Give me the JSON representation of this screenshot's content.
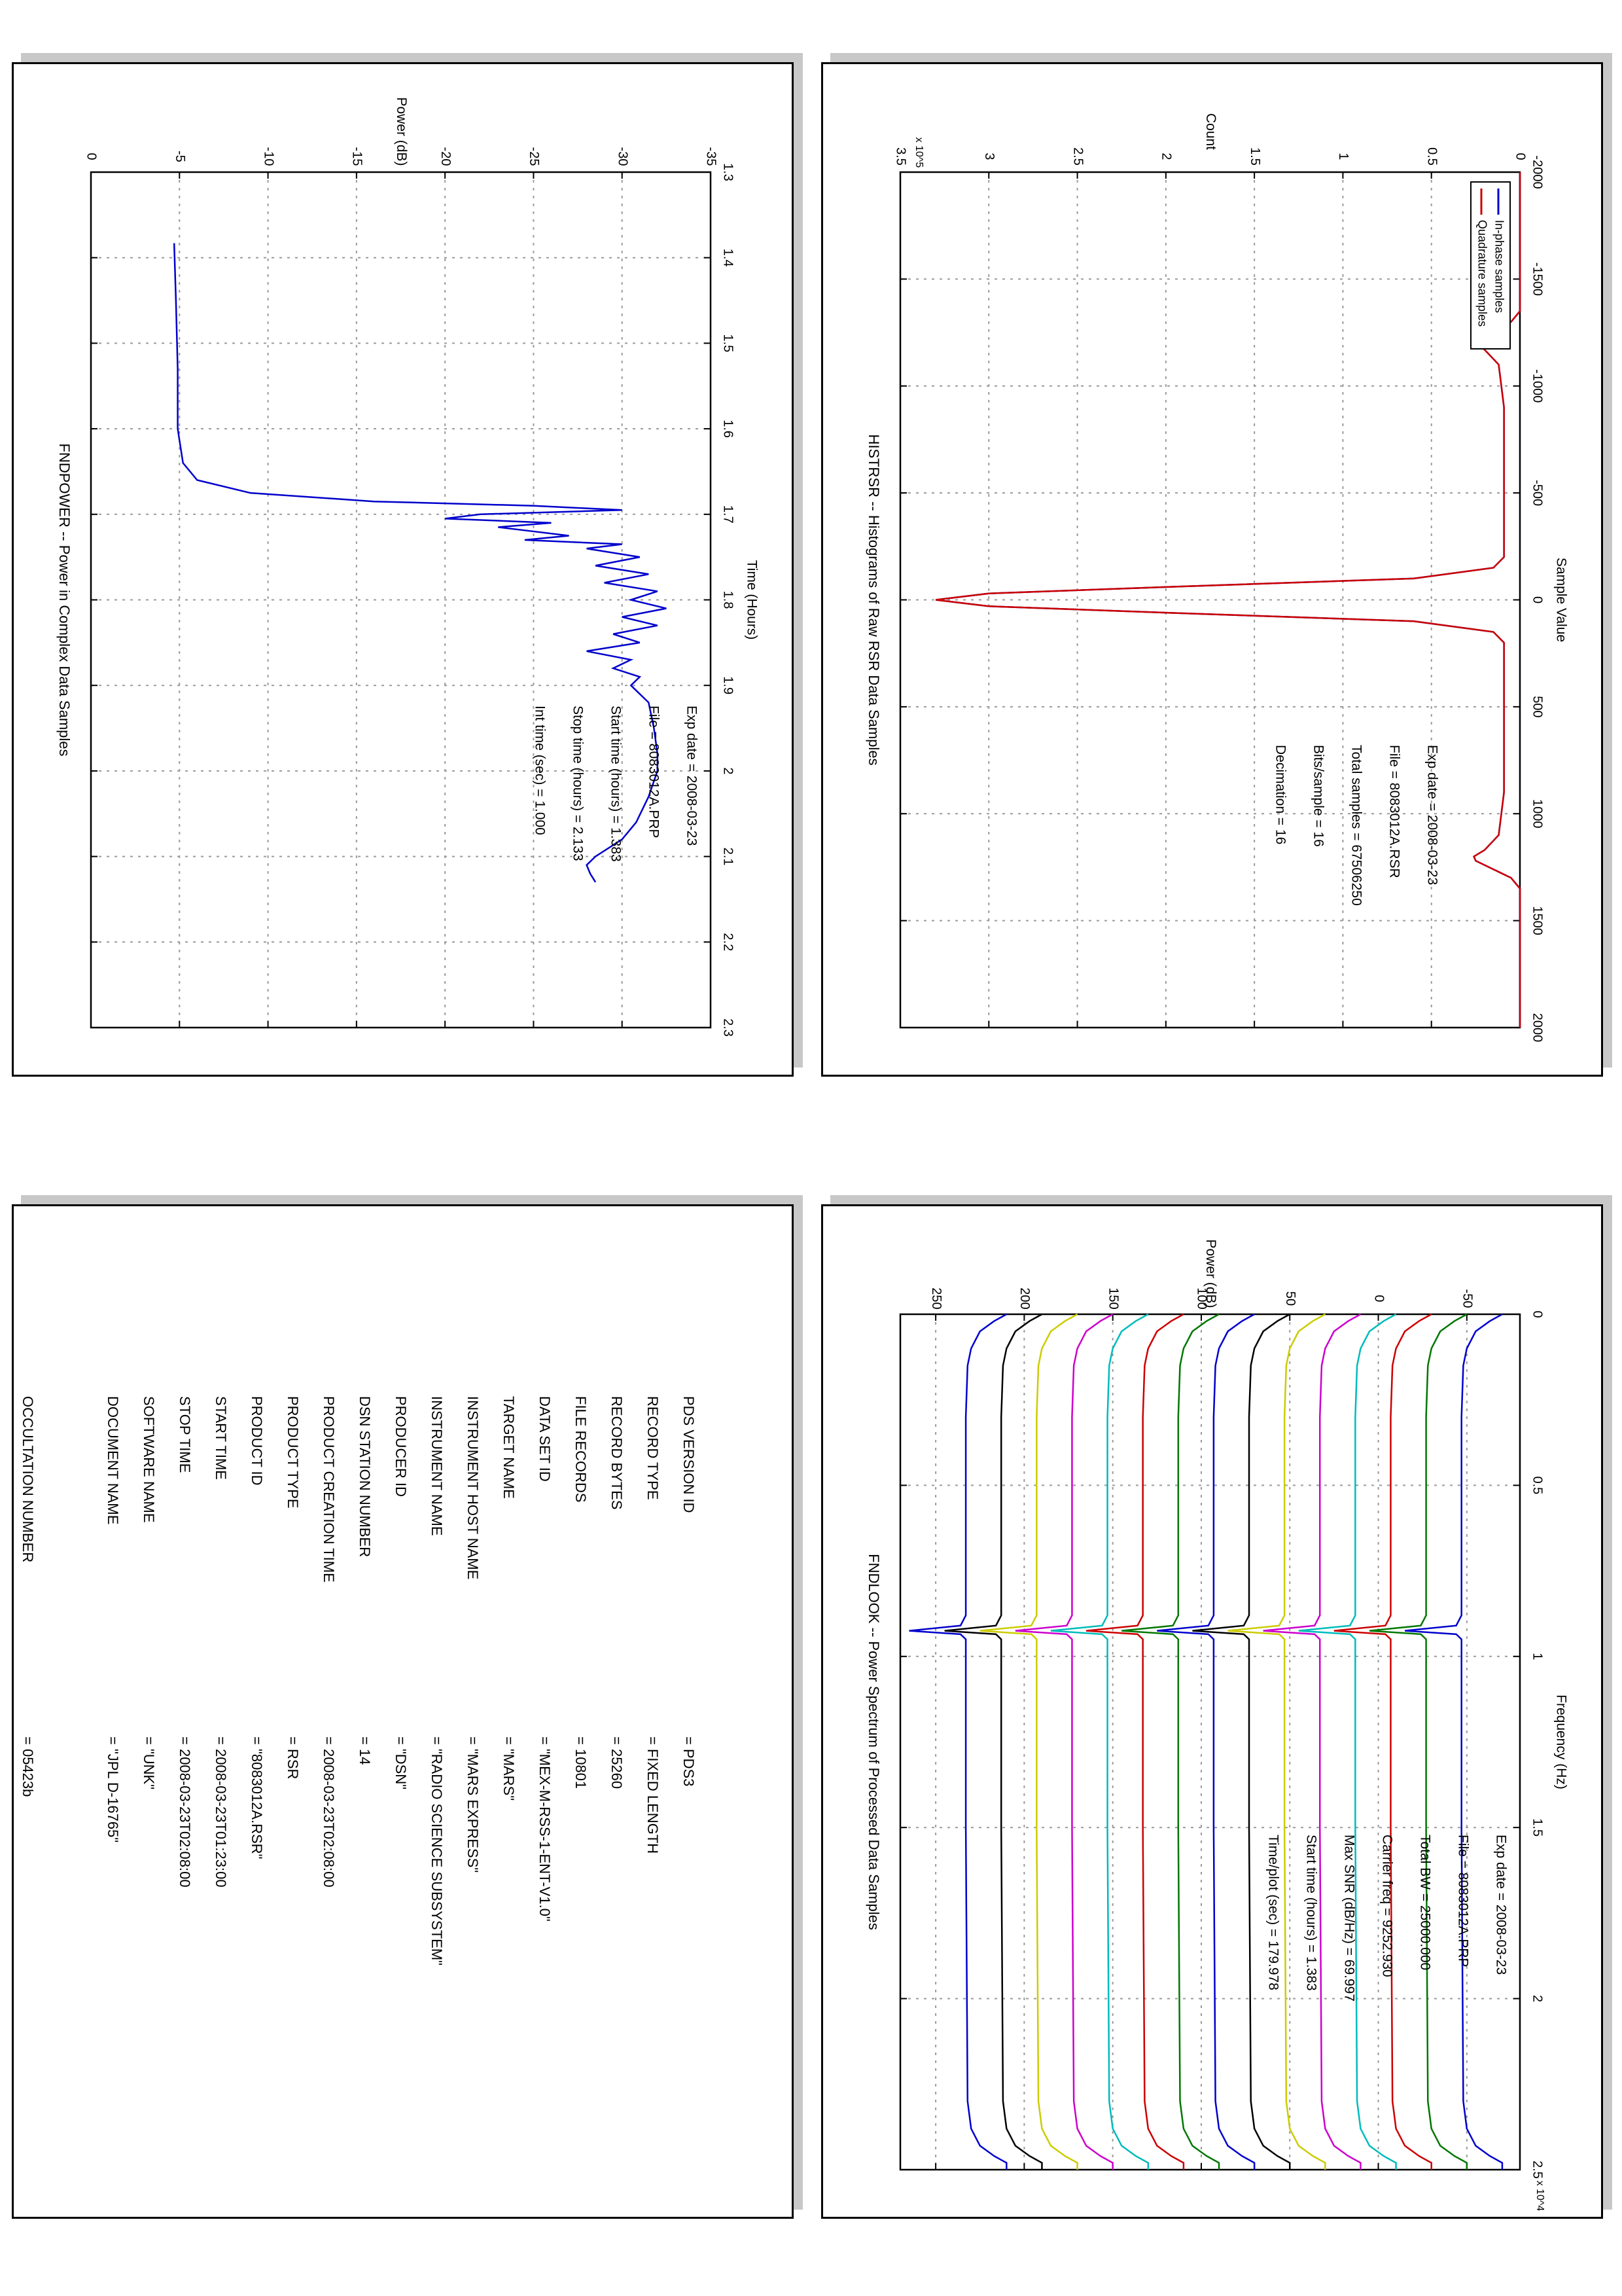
{
  "panels": {
    "histogram": {
      "chart_data": {
        "type": "line",
        "title": "HISTRSR -- Histograms of Raw RSR Data Samples",
        "xlabel": "Sample Value",
        "ylabel": "Count",
        "xlim": [
          -2000,
          2000
        ],
        "ylim": [
          0,
          3.5
        ],
        "y_exponent": "x 10^5",
        "xticks": [
          "-2000",
          "-1500",
          "-1000",
          "-500",
          "0",
          "500",
          "1000",
          "1500",
          "2000"
        ],
        "yticks": [
          "0",
          "0.5",
          "1",
          "1.5",
          "2",
          "2.5",
          "3",
          "3.5"
        ],
        "grid": true,
        "legend_position": "top-left",
        "series": [
          {
            "name": "In-phase samples",
            "color": "#0000cc",
            "x": [
              -2000,
              -1350,
              -1300,
              -1260,
              -1220,
              -1200,
              -1170,
              -1100,
              -900,
              -200,
              -150,
              -100,
              -60,
              -30,
              0,
              30,
              60,
              100,
              150,
              200,
              900,
              1100,
              1170,
              1200,
              1220,
              1260,
              1300,
              1350,
              2000
            ],
            "y": [
              0,
              0,
              0.05,
              0.15,
              0.25,
              0.26,
              0.2,
              0.12,
              0.09,
              0.09,
              0.15,
              0.6,
              2.0,
              3.0,
              3.3,
              3.0,
              2.0,
              0.6,
              0.15,
              0.09,
              0.09,
              0.12,
              0.2,
              0.26,
              0.25,
              0.15,
              0.05,
              0,
              0
            ]
          },
          {
            "name": "Quadrature samples",
            "color": "#cc0000",
            "x": [
              -2000,
              -1350,
              -1300,
              -1260,
              -1220,
              -1200,
              -1170,
              -1100,
              -900,
              -200,
              -150,
              -100,
              -60,
              -30,
              0,
              30,
              60,
              100,
              150,
              200,
              900,
              1100,
              1170,
              1200,
              1220,
              1260,
              1300,
              1350,
              2000
            ],
            "y": [
              0,
              0,
              0.05,
              0.15,
              0.25,
              0.26,
              0.2,
              0.12,
              0.09,
              0.09,
              0.15,
              0.6,
              2.0,
              3.0,
              3.3,
              3.0,
              2.0,
              0.6,
              0.15,
              0.09,
              0.09,
              0.12,
              0.2,
              0.26,
              0.25,
              0.15,
              0.05,
              0,
              0
            ]
          }
        ]
      },
      "info": [
        "Exp date = 2008-03-23",
        "File = 8083012A.RSR",
        "Total samples =   67506250",
        "Bits/sample   =        16",
        "Decimation    =        16"
      ]
    },
    "power": {
      "chart_data": {
        "type": "line",
        "title": "FNDPOWER -- Power in Complex Data Samples",
        "xlabel": "Time (Hours)",
        "ylabel": "Power (dB)",
        "xlim": [
          1.3,
          2.3
        ],
        "ylim": [
          -35,
          0
        ],
        "xticks": [
          "1.3",
          "1.4",
          "1.5",
          "1.6",
          "1.7",
          "1.8",
          "1.9",
          "2",
          "2.1",
          "2.2",
          "2.3"
        ],
        "yticks": [
          "-35",
          "-30",
          "-25",
          "-20",
          "-15",
          "-10",
          "-5",
          "0"
        ],
        "grid": true,
        "series": [
          {
            "color": "#0000cc",
            "x": [
              1.383,
              1.45,
              1.53,
              1.6,
              1.64,
              1.66,
              1.675,
              1.685,
              1.69,
              1.695,
              1.7,
              1.705,
              1.71,
              1.715,
              1.72,
              1.725,
              1.73,
              1.735,
              1.74,
              1.75,
              1.76,
              1.77,
              1.78,
              1.79,
              1.8,
              1.81,
              1.82,
              1.83,
              1.84,
              1.85,
              1.86,
              1.87,
              1.88,
              1.89,
              1.9,
              1.92,
              1.95,
              1.98,
              2.0,
              2.03,
              2.06,
              2.08,
              2.1,
              2.11,
              2.12,
              2.13
            ],
            "y": [
              -4.7,
              -4.8,
              -4.9,
              -4.9,
              -5.2,
              -6.0,
              -9.0,
              -16.0,
              -25.0,
              -30.0,
              -22.0,
              -20.0,
              -26.0,
              -23.0,
              -25.0,
              -27.0,
              -24.5,
              -30.0,
              -28.0,
              -31.0,
              -28.5,
              -31.5,
              -29.0,
              -32.0,
              -30.5,
              -32.5,
              -30.0,
              -32.0,
              -29.5,
              -31.0,
              -28.0,
              -30.5,
              -29.5,
              -31.0,
              -30.5,
              -31.5,
              -31.8,
              -32.0,
              -32.0,
              -31.5,
              -30.8,
              -30.0,
              -28.5,
              -28.0,
              -28.2,
              -28.5
            ]
          }
        ]
      },
      "info": [
        "Exp date = 2008-03-23",
        "File = 8083012A.PRP",
        "Start time (hours) =  1.383",
        "Stop time (hours)  =  2.133",
        "Int time (sec) =     1.000"
      ]
    },
    "spectrum": {
      "chart_data": {
        "type": "line",
        "title": "FNDLOOK -- Power Spectrum of Processed Data Samples",
        "xlabel": "Frequency (Hz)",
        "ylabel": "Power (dB)",
        "xlim": [
          0,
          2.5
        ],
        "ylim": [
          -80,
          270
        ],
        "x_exponent": "x 10^4",
        "xticks": [
          "0",
          "0.5",
          "1",
          "1.5",
          "2",
          "2.5"
        ],
        "yticks": [
          "-50",
          "0",
          "50",
          "100",
          "150",
          "200",
          "250"
        ],
        "grid": true,
        "trace_offsets": [
          220,
          200,
          180,
          160,
          140,
          120,
          100,
          80,
          60,
          40,
          20,
          0,
          -20,
          -40,
          -60
        ],
        "trace_colors": [
          "#0000cc",
          "#000000",
          "#cccc00",
          "#cc00cc",
          "#00bbbb",
          "#cc0000",
          "#007700",
          "#0000cc",
          "#000000",
          "#cccc00",
          "#cc00cc",
          "#00bbbb",
          "#cc0000",
          "#007700",
          "#0000cc"
        ],
        "trace_shape_x": [
          0.0,
          0.02,
          0.05,
          0.1,
          0.15,
          0.3,
          0.88,
          0.91,
          0.925,
          0.935,
          0.95,
          0.98,
          1.5,
          2.3,
          2.38,
          2.43,
          2.46,
          2.48,
          2.5
        ],
        "trace_shape_y": [
          -10,
          -3,
          5,
          10,
          12,
          13,
          13,
          16,
          45,
          16,
          13,
          13,
          13,
          12,
          10,
          5,
          -3,
          -10,
          -10
        ]
      },
      "info": [
        "Exp date = 2008-03-23",
        "File = 8083012A.PRP",
        "Total BW =      25000.000",
        "Carrier freq =   9252.930",
        "Max SNR (dB/Hz) =    69.997",
        "Start time (hours) =    1.383",
        "Time/plot (sec) =    179.978"
      ]
    },
    "label": {
      "rows": [
        {
          "key": "PDS VERSION ID",
          "value": "= PDS3"
        },
        {
          "key": "RECORD TYPE",
          "value": "= FIXED LENGTH"
        },
        {
          "key": "RECORD BYTES",
          "value": "= 25260"
        },
        {
          "key": "FILE RECORDS",
          "value": "= 10801"
        },
        {
          "key": "DATA SET ID",
          "value": "= \"MEX-M-RSS-1-ENT-V1.0\""
        },
        {
          "key": "TARGET NAME",
          "value": "= \"MARS\""
        },
        {
          "key": "INSTRUMENT HOST NAME",
          "value": "= \"MARS EXPRESS\""
        },
        {
          "key": "INSTRUMENT NAME",
          "value": "= \"RADIO SCIENCE SUBSYSTEM\""
        },
        {
          "key": "PRODUCER ID",
          "value": "= \"DSN\""
        },
        {
          "key": "DSN STATION NUMBER",
          "value": "= 14"
        },
        {
          "key": "PRODUCT CREATION TIME",
          "value": "= 2008-03-23T02:08:00"
        },
        {
          "key": "PRODUCT TYPE",
          "value": "= RSR"
        },
        {
          "key": "PRODUCT ID",
          "value": "= \"8083012A.RSR\""
        },
        {
          "key": "START TIME",
          "value": "= 2008-03-23T01:23:00"
        },
        {
          "key": "STOP TIME",
          "value": "= 2008-03-23T02:08:00"
        },
        {
          "key": "SOFTWARE NAME",
          "value": "= \"UNK\""
        },
        {
          "key": "DOCUMENT NAME",
          "value": "= \"JPL D-16765\""
        },
        {
          "key": "",
          "value": ""
        },
        {
          "key": "OCCULTATION NUMBER",
          "value": "= 05423b"
        }
      ]
    }
  }
}
